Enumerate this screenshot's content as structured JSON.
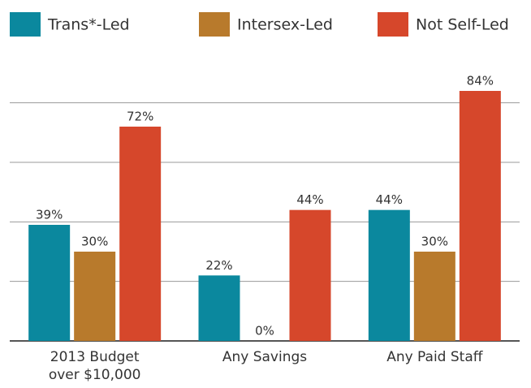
{
  "chart_data": {
    "type": "bar",
    "categories": [
      [
        "2013 Budget",
        "over $10,000"
      ],
      [
        "Any Savings"
      ],
      [
        "Any Paid Staff"
      ]
    ],
    "series": [
      {
        "name": "Trans*-Led",
        "color": "#0b889e",
        "values": [
          39,
          22,
          44
        ],
        "value_labels": [
          "39%",
          "22%",
          "44%"
        ]
      },
      {
        "name": "Intersex-Led",
        "color": "#b87a2c",
        "values": [
          30,
          0,
          30
        ],
        "value_labels": [
          "30%",
          "0%",
          "30%"
        ]
      },
      {
        "name": "Not Self-Led",
        "color": "#d6472b",
        "values": [
          72,
          44,
          84
        ],
        "value_labels": [
          "72%",
          "44%",
          "84%"
        ]
      }
    ],
    "ylim": [
      0,
      90
    ],
    "yticks": [
      0,
      20,
      40,
      60,
      80
    ],
    "grid": true
  }
}
